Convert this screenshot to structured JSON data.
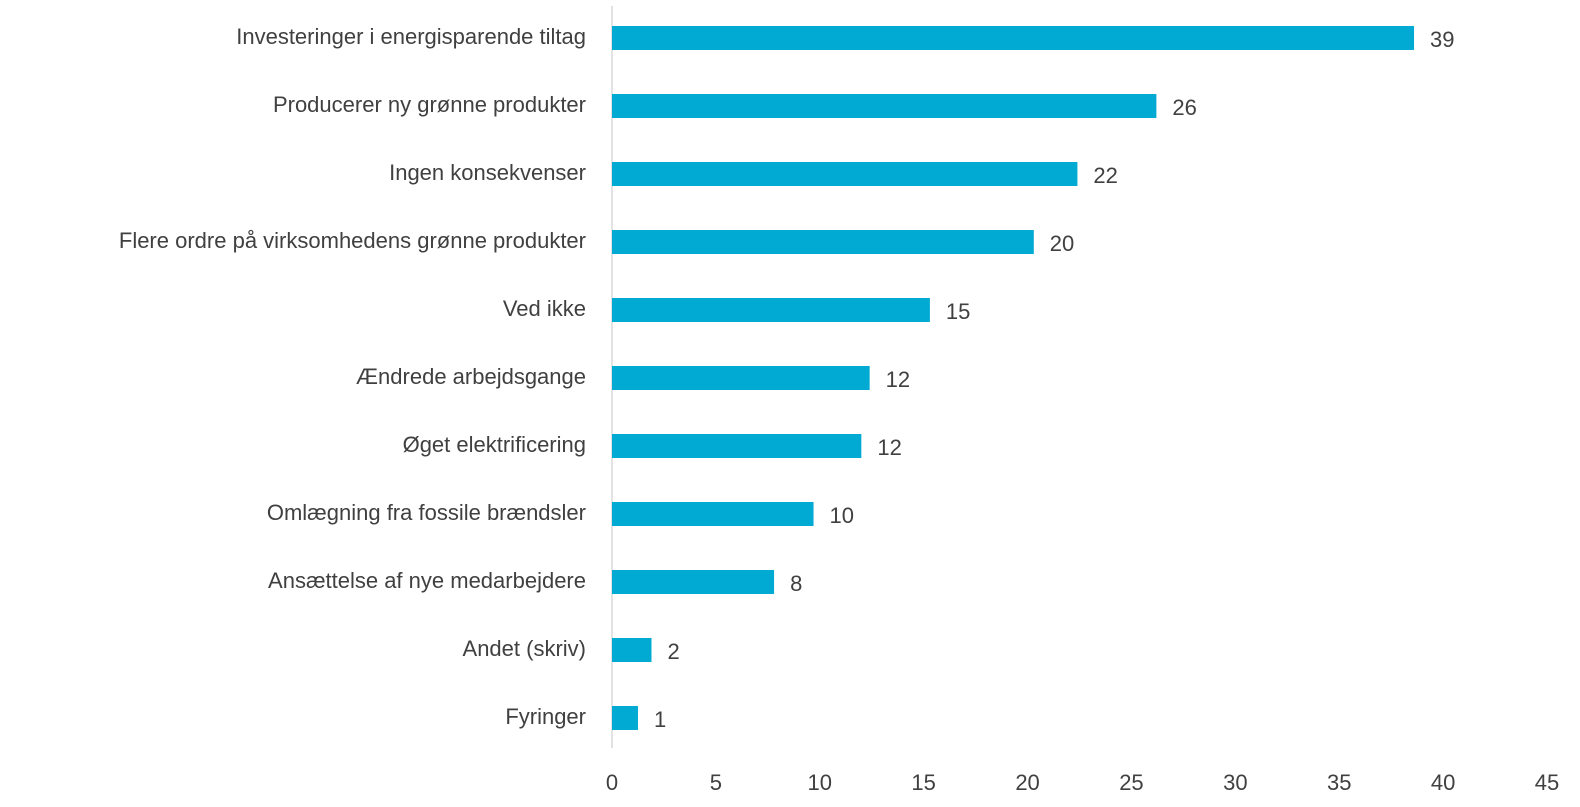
{
  "chart_data": {
    "type": "hbar",
    "categories": [
      "Investeringer i energisparende tiltag",
      "Producerer ny grønne produkter",
      "Ingen konsekvenser",
      "Flere ordre på virksomhedens grønne produkter",
      "Ved ikke",
      "Ændrede arbejdsgange",
      "Øget elektrificering",
      "Omlægning fra fossile brændsler",
      "Ansættelse af nye medarbejdere",
      "Andet (skriv)",
      "Fyringer"
    ],
    "values": [
      38.6,
      26.2,
      22.4,
      20.3,
      15.3,
      12.4,
      12.0,
      9.7,
      7.8,
      1.9,
      1.25
    ],
    "value_labels": [
      "39",
      "26",
      "22",
      "20",
      "15",
      "12",
      "12",
      "10",
      "8",
      "2",
      "1"
    ],
    "color": "#00aad2",
    "xlim": [
      0,
      45
    ],
    "xticks": [
      0,
      5,
      10,
      15,
      20,
      25,
      30,
      35,
      40,
      45
    ],
    "grid": false
  }
}
